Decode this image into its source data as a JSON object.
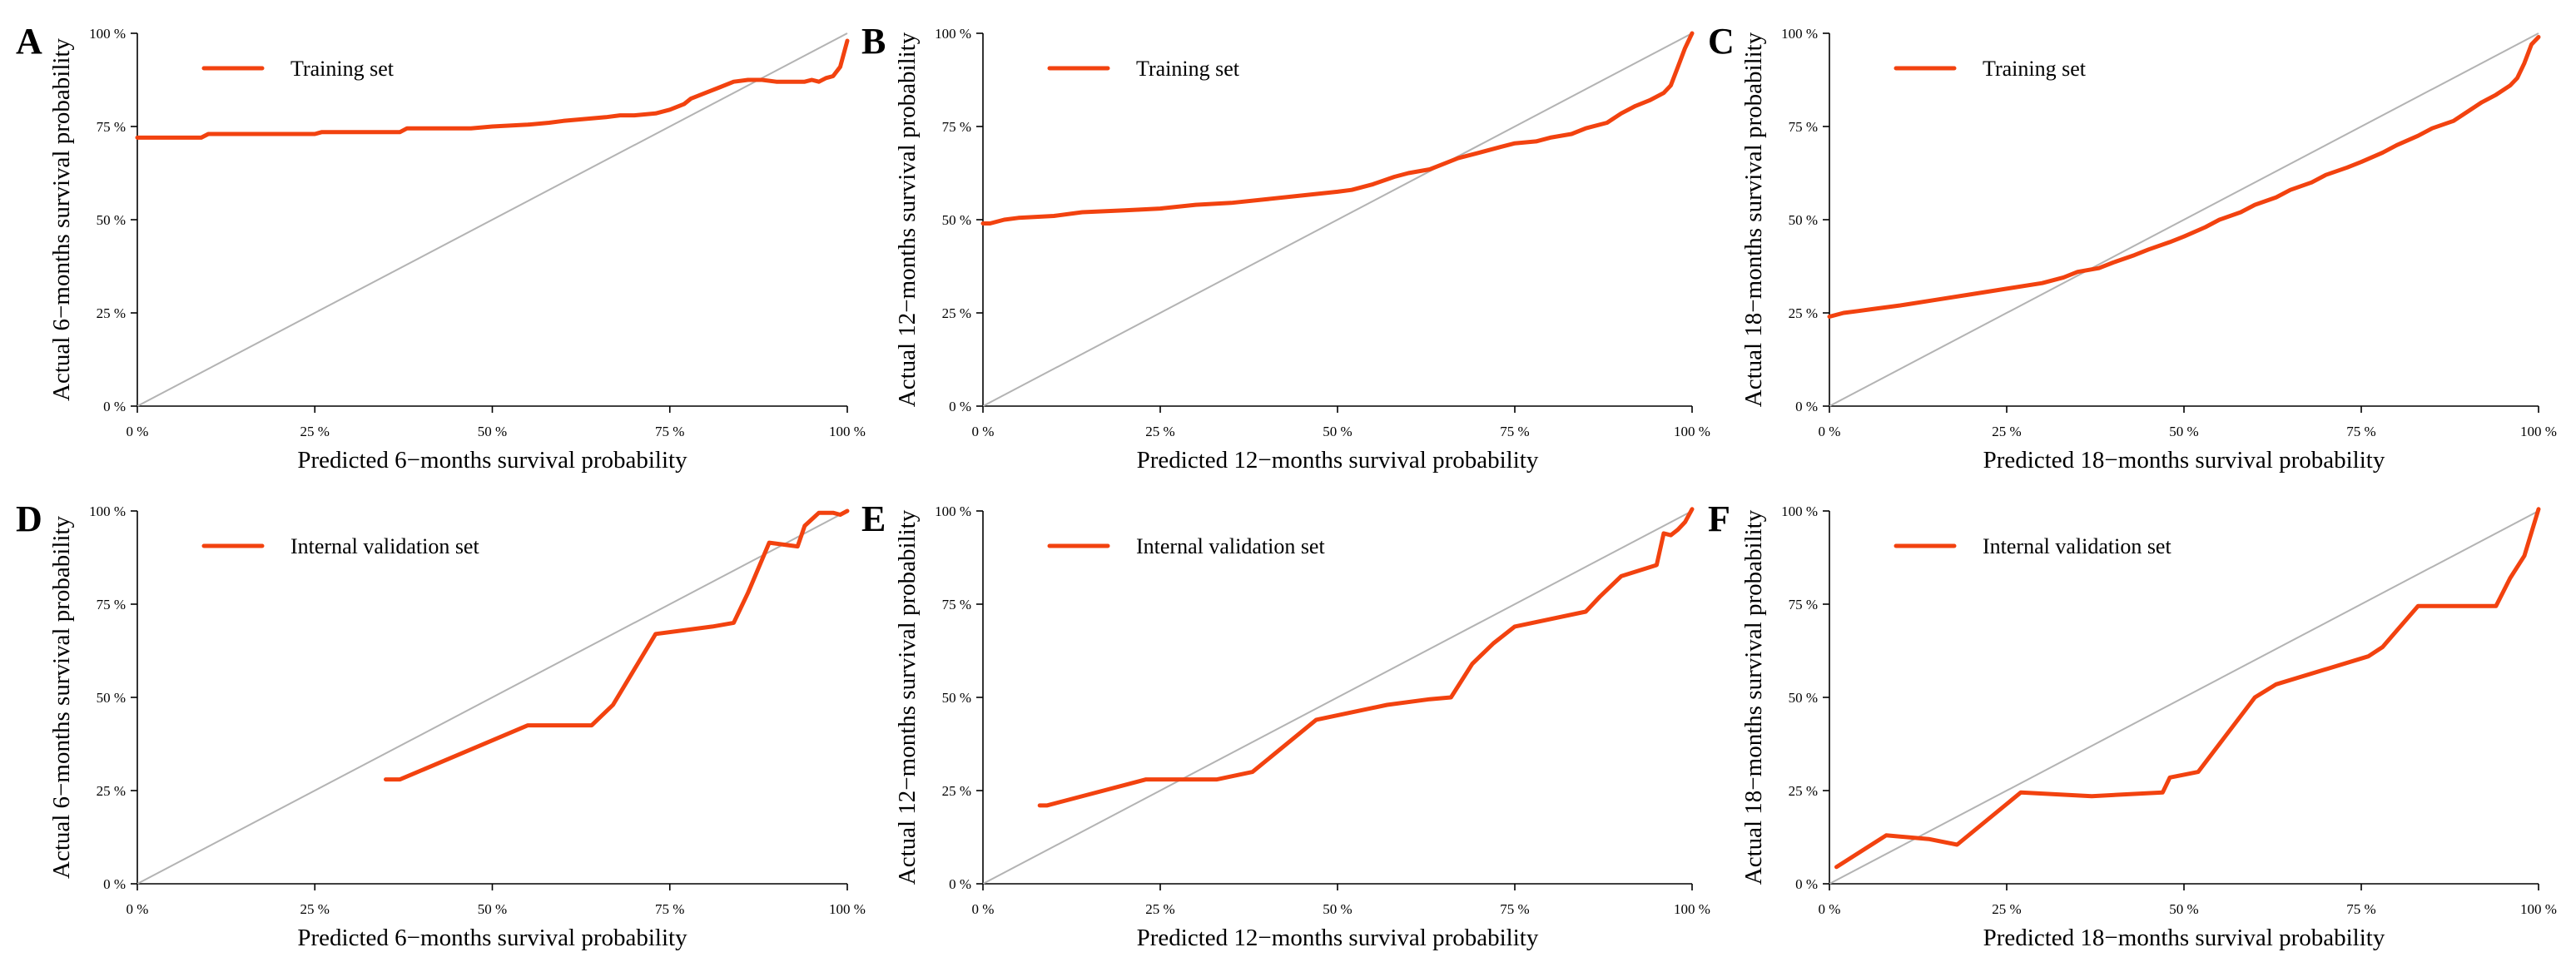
{
  "colors": {
    "series": "#f2420f",
    "reference": "#b3b3b3",
    "axis": "#000000"
  },
  "chart_data": [
    {
      "panel": "A",
      "type": "line",
      "xlabel": "Predicted 6−months survival probability",
      "ylabel": "Actual 6−months survival probability",
      "xlim": [
        0,
        100
      ],
      "ylim": [
        0,
        100
      ],
      "x_ticks": [
        "0 %",
        "25 %",
        "50 %",
        "75 %",
        "100 %"
      ],
      "y_ticks": [
        "0 %",
        "25 %",
        "50 %",
        "75 %",
        "100 %"
      ],
      "legend": "Training set",
      "legend_position": "top-left",
      "reference_line": [
        [
          0,
          0
        ],
        [
          100,
          100
        ]
      ],
      "series": [
        {
          "name": "Training set",
          "x": [
            0,
            9,
            10,
            25,
            26,
            37,
            38,
            47,
            50,
            55,
            58,
            60,
            63,
            66,
            68,
            70,
            73,
            74,
            75,
            77,
            78,
            80,
            82,
            84,
            86,
            88,
            90,
            92,
            94,
            95,
            96,
            97,
            98,
            99,
            100
          ],
          "y": [
            72,
            72,
            73,
            73,
            73.5,
            73.5,
            74.5,
            74.5,
            75,
            75.5,
            76,
            76.5,
            77,
            77.5,
            78,
            78,
            78.5,
            79,
            79.5,
            81,
            82.5,
            84,
            85.5,
            87,
            87.5,
            87.5,
            87,
            87,
            87,
            87.5,
            87,
            88,
            88.5,
            91,
            98
          ]
        }
      ]
    },
    {
      "panel": "B",
      "type": "line",
      "xlabel": "Predicted 12−months survival probability",
      "ylabel": "Actual 12−months survival probability",
      "xlim": [
        0,
        100
      ],
      "ylim": [
        0,
        100
      ],
      "x_ticks": [
        "0 %",
        "25 %",
        "50 %",
        "75 %",
        "100 %"
      ],
      "y_ticks": [
        "0 %",
        "25 %",
        "50 %",
        "75 %",
        "100 %"
      ],
      "legend": "Training set",
      "legend_position": "top-left",
      "reference_line": [
        [
          0,
          0
        ],
        [
          100,
          100
        ]
      ],
      "series": [
        {
          "name": "Training set",
          "x": [
            0,
            1,
            3,
            5,
            10,
            14,
            20,
            25,
            30,
            35,
            40,
            45,
            50,
            52,
            55,
            58,
            60,
            63,
            65,
            67,
            70,
            73,
            75,
            78,
            80,
            83,
            85,
            88,
            90,
            92,
            94,
            96,
            97,
            98,
            99,
            100
          ],
          "y": [
            49,
            49,
            50,
            50.5,
            51,
            52,
            52.5,
            53,
            54,
            54.5,
            55.5,
            56.5,
            57.5,
            58,
            59.5,
            61.5,
            62.5,
            63.5,
            65,
            66.5,
            68,
            69.5,
            70.5,
            71,
            72,
            73,
            74.5,
            76,
            78.5,
            80.5,
            82,
            84,
            86,
            91,
            96,
            100
          ]
        }
      ]
    },
    {
      "panel": "C",
      "type": "line",
      "xlabel": "Predicted 18−months survival probability",
      "ylabel": "Actual 18−months survival probability",
      "xlim": [
        0,
        100
      ],
      "ylim": [
        0,
        100
      ],
      "x_ticks": [
        "0 %",
        "25 %",
        "50 %",
        "75 %",
        "100 %"
      ],
      "y_ticks": [
        "0 %",
        "25 %",
        "50 %",
        "75 %",
        "100 %"
      ],
      "legend": "Training set",
      "legend_position": "top-left",
      "reference_line": [
        [
          0,
          0
        ],
        [
          100,
          100
        ]
      ],
      "series": [
        {
          "name": "Training set",
          "x": [
            0,
            2,
            4,
            6,
            10,
            15,
            20,
            25,
            30,
            33,
            35,
            38,
            40,
            43,
            45,
            48,
            50,
            53,
            55,
            58,
            60,
            63,
            65,
            68,
            70,
            73,
            75,
            78,
            80,
            83,
            85,
            88,
            90,
            92,
            94,
            96,
            97,
            98,
            99,
            100
          ],
          "y": [
            24,
            25,
            25.5,
            26,
            27,
            28.5,
            30,
            31.5,
            33,
            34.5,
            36,
            37,
            38.5,
            40.5,
            42,
            44,
            45.5,
            48,
            50,
            52,
            54,
            56,
            58,
            60,
            62,
            64,
            65.5,
            68,
            70,
            72.5,
            74.5,
            76.5,
            79,
            81.5,
            83.5,
            86,
            88,
            92,
            97,
            99
          ]
        }
      ]
    },
    {
      "panel": "D",
      "type": "line",
      "xlabel": "Predicted 6−months survival probability",
      "ylabel": "Actual 6−months survival probability",
      "xlim": [
        0,
        100
      ],
      "ylim": [
        0,
        100
      ],
      "x_ticks": [
        "0 %",
        "25 %",
        "50 %",
        "75 %",
        "100 %"
      ],
      "y_ticks": [
        "0 %",
        "25 %",
        "50 %",
        "75 %",
        "100 %"
      ],
      "legend": "Internal validation set",
      "legend_position": "top-left",
      "reference_line": [
        [
          0,
          0
        ],
        [
          100,
          100
        ]
      ],
      "series": [
        {
          "name": "Internal validation set",
          "x": [
            35,
            37,
            55,
            64,
            67,
            73,
            81,
            84,
            86,
            89,
            93,
            94,
            96,
            98,
            99,
            100
          ],
          "y": [
            28,
            28,
            42.5,
            42.5,
            48,
            67,
            69,
            70,
            78,
            91.5,
            90.5,
            96,
            99.5,
            99.5,
            99,
            100
          ]
        }
      ]
    },
    {
      "panel": "E",
      "type": "line",
      "xlabel": "Predicted 12−months survival probability",
      "ylabel": "Actual 12−months survival probability",
      "xlim": [
        0,
        100
      ],
      "ylim": [
        0,
        100
      ],
      "x_ticks": [
        "0 %",
        "25 %",
        "50 %",
        "75 %",
        "100 %"
      ],
      "y_ticks": [
        "0 %",
        "25 %",
        "50 %",
        "75 %",
        "100 %"
      ],
      "legend": "Internal validation set",
      "legend_position": "top-left",
      "reference_line": [
        [
          0,
          0
        ],
        [
          100,
          100
        ]
      ],
      "series": [
        {
          "name": "Internal validation set",
          "x": [
            8,
            9,
            15,
            20,
            23,
            33,
            38,
            47,
            57,
            63,
            66,
            69,
            72,
            75,
            85,
            87,
            90,
            95,
            96,
            97,
            98,
            99,
            100
          ],
          "y": [
            21,
            21,
            24,
            26.5,
            28,
            28,
            30,
            44,
            48,
            49.5,
            50,
            59,
            64.5,
            69,
            73,
            77,
            82.5,
            85.5,
            94,
            93.5,
            95,
            97,
            100.5
          ]
        }
      ]
    },
    {
      "panel": "F",
      "type": "line",
      "xlabel": "Predicted 18−months survival probability",
      "ylabel": "Actual 18−months survival probability",
      "xlim": [
        0,
        100
      ],
      "ylim": [
        0,
        100
      ],
      "x_ticks": [
        "0 %",
        "25 %",
        "50 %",
        "75 %",
        "100 %"
      ],
      "y_ticks": [
        "0 %",
        "25 %",
        "50 %",
        "75 %",
        "100 %"
      ],
      "legend": "Internal validation set",
      "legend_position": "top-left",
      "reference_line": [
        [
          0,
          0
        ],
        [
          100,
          100
        ]
      ],
      "series": [
        {
          "name": "Internal validation set",
          "x": [
            1,
            8,
            14,
            18,
            27,
            37,
            47,
            48,
            52,
            60,
            63,
            76,
            78,
            83,
            94,
            96,
            98,
            100
          ],
          "y": [
            4.5,
            13,
            12,
            10.5,
            24.5,
            23.5,
            24.5,
            28.5,
            30,
            50,
            53.5,
            61,
            63.5,
            74.5,
            74.5,
            82,
            88,
            100.5
          ]
        }
      ]
    }
  ]
}
